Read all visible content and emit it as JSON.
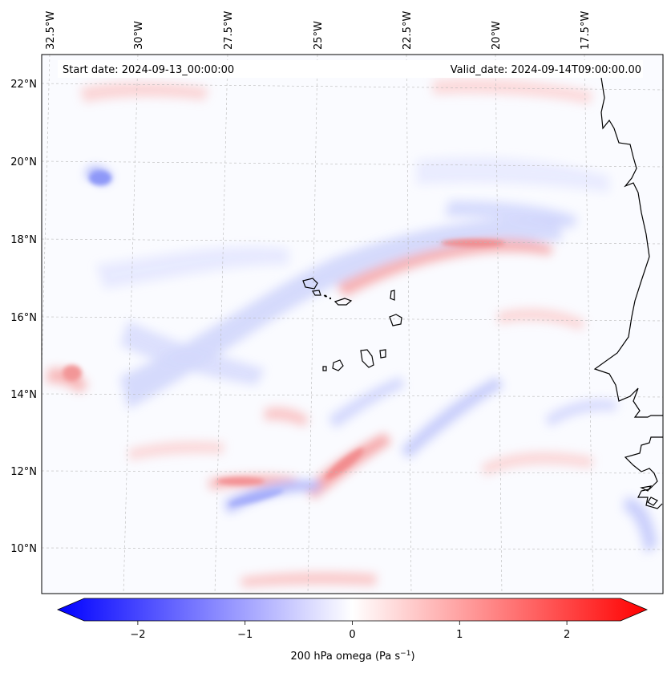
{
  "header": {
    "start_date": "Start date: 2024-09-13_00:00:00",
    "valid_date": "Valid_date: 2024-09-14T09:00:00.00"
  },
  "axes": {
    "lon_labels": [
      "32.5°W",
      "30°W",
      "27.5°W",
      "25°W",
      "22.5°W",
      "20°W",
      "17.5°W"
    ],
    "lat_labels": [
      "22°N",
      "20°N",
      "18°N",
      "16°N",
      "14°N",
      "12°N",
      "10°N"
    ]
  },
  "colorbar": {
    "title": "200 hPa omega (Pa s",
    "title_exp": "−1",
    "title_close": ")",
    "ticks": [
      {
        "label": "−2",
        "value": -2
      },
      {
        "label": "−1",
        "value": -1
      },
      {
        "label": "0",
        "value": 0
      },
      {
        "label": "1",
        "value": 1
      },
      {
        "label": "2",
        "value": 2
      }
    ],
    "range": [
      -2.5,
      2.5
    ],
    "neg_color": "#0000ff",
    "pos_color": "#ff0000",
    "mid_color": "#ffffff"
  }
}
